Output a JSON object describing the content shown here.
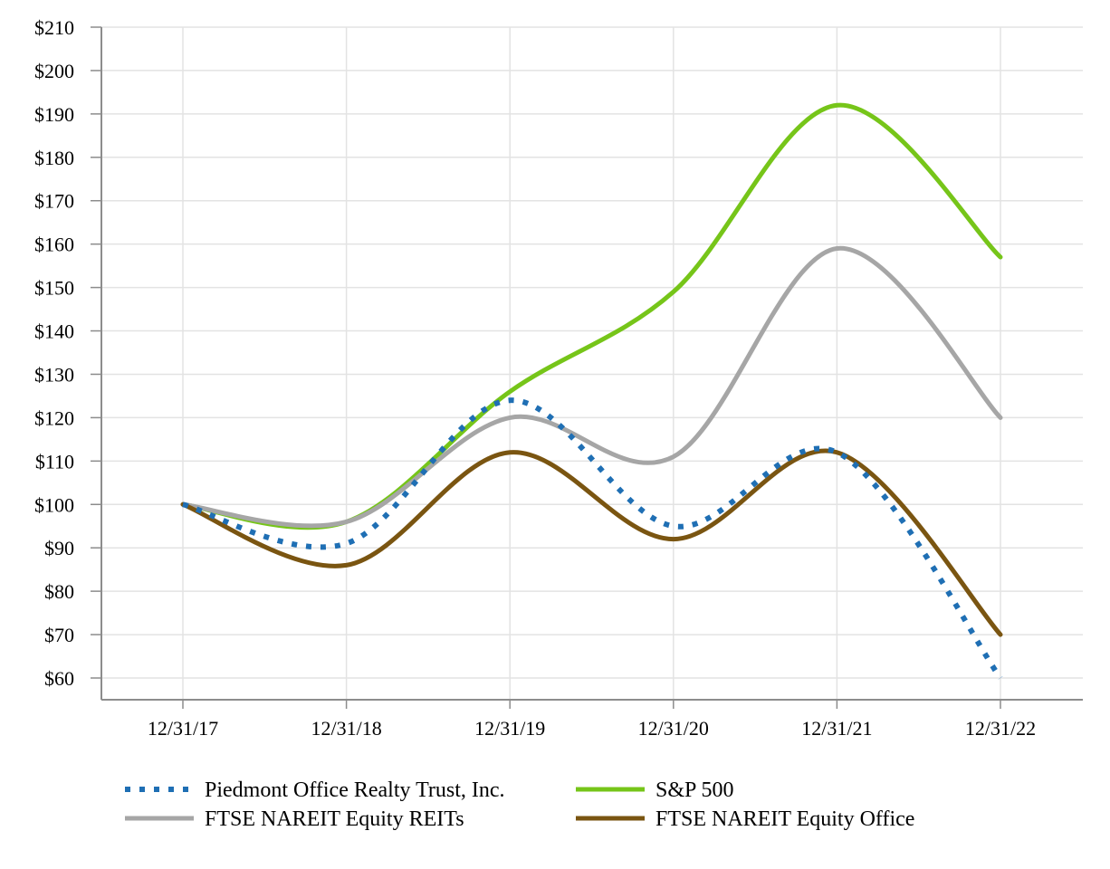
{
  "chart_data": {
    "type": "line",
    "title": "",
    "xlabel": "",
    "ylabel": "",
    "categories": [
      "12/31/17",
      "12/31/18",
      "12/31/19",
      "12/31/20",
      "12/31/21",
      "12/31/22"
    ],
    "y_ticks": [
      "$60",
      "$70",
      "$80",
      "$90",
      "$100",
      "$110",
      "$120",
      "$130",
      "$140",
      "$150",
      "$160",
      "$170",
      "$180",
      "$190",
      "$200",
      "$210"
    ],
    "ylim": [
      60,
      210
    ],
    "grid": true,
    "legend_position": "bottom",
    "series": [
      {
        "name": "Piedmont Office Realty Trust, Inc.",
        "values": [
          100,
          91,
          124,
          95,
          112,
          60
        ],
        "color": "#1f6fb4",
        "style": "dotted"
      },
      {
        "name": "S&P 500",
        "values": [
          100,
          96,
          126,
          149,
          192,
          157
        ],
        "color": "#76c519",
        "style": "solid"
      },
      {
        "name": "FTSE NAREIT Equity REITs",
        "values": [
          100,
          96,
          120,
          111,
          159,
          120
        ],
        "color": "#a6a6a6",
        "style": "solid"
      },
      {
        "name": "FTSE NAREIT Equity Office",
        "values": [
          100,
          86,
          112,
          92,
          112,
          70
        ],
        "color": "#7a5511",
        "style": "solid"
      }
    ]
  }
}
